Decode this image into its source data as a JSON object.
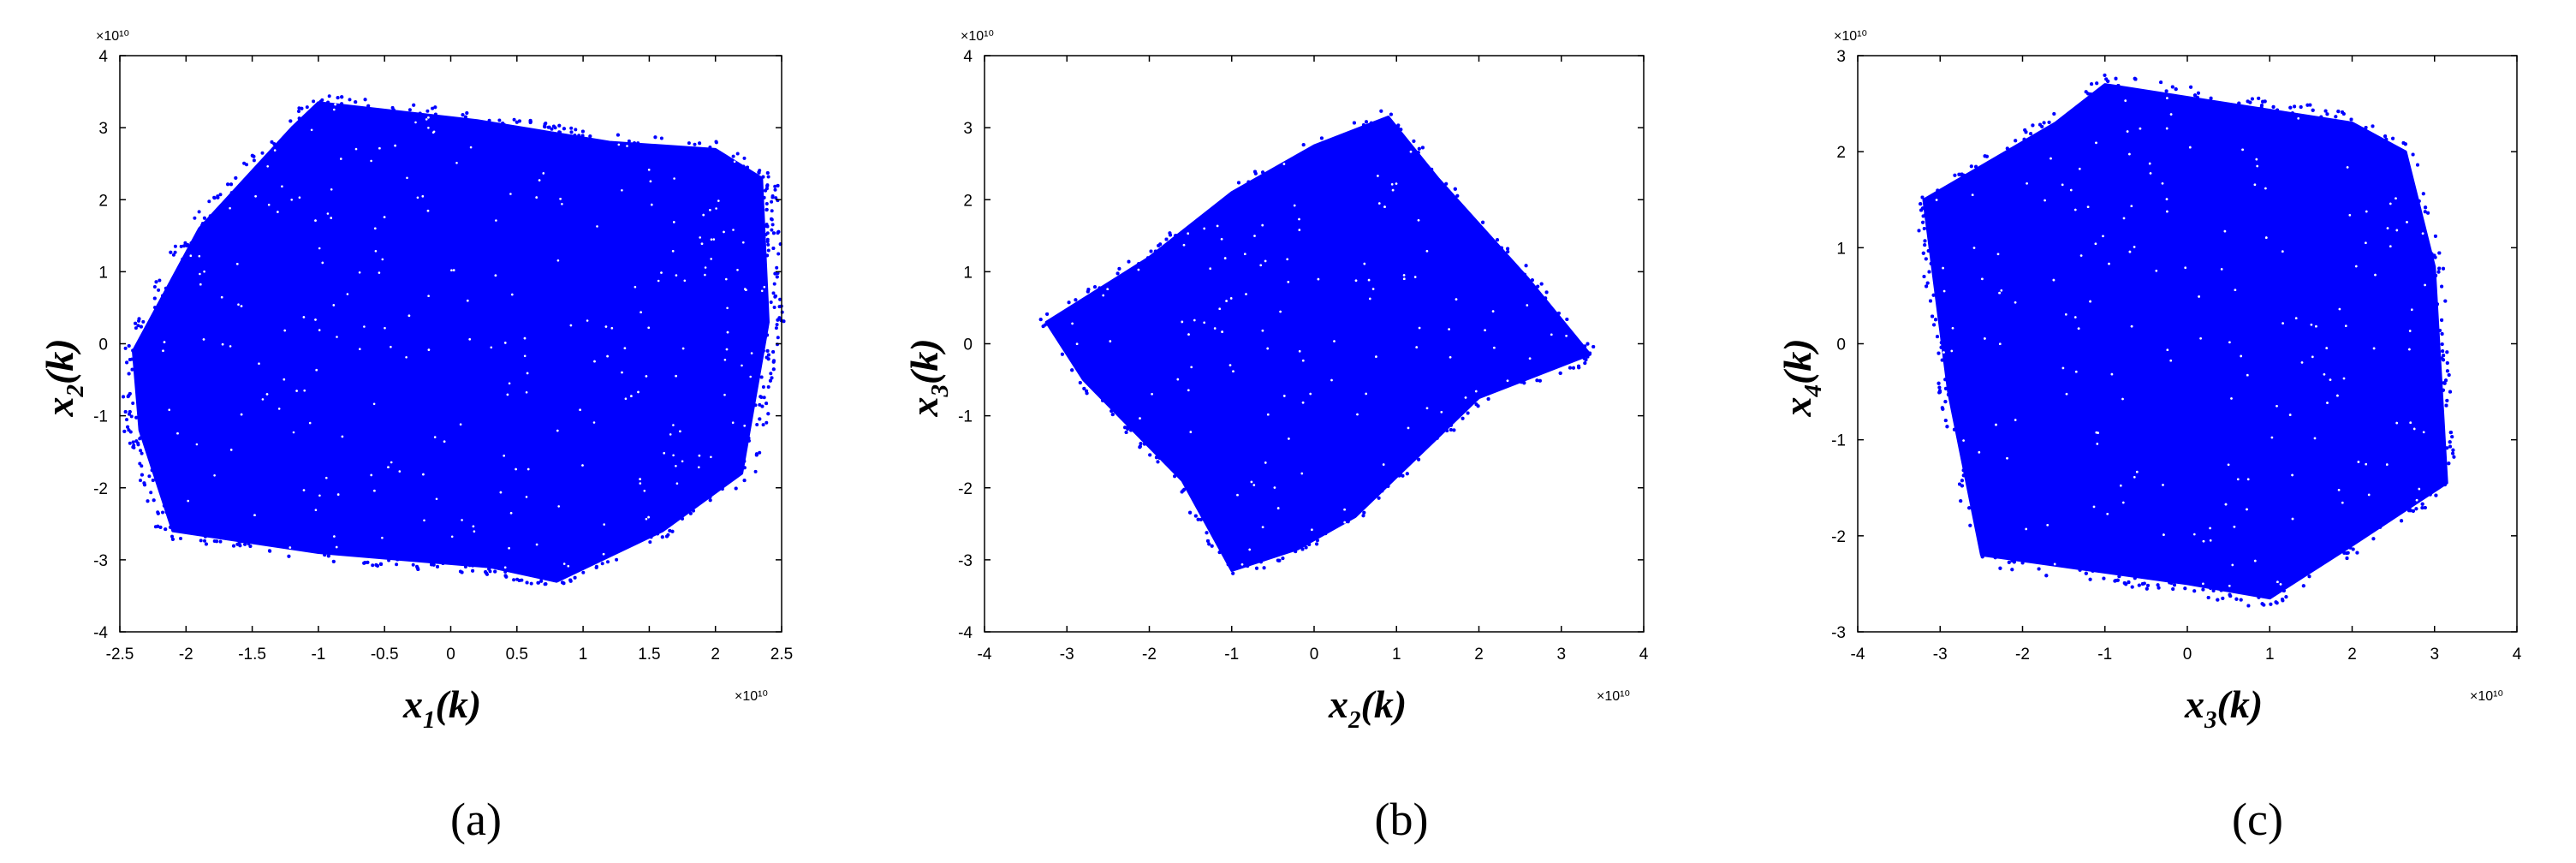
{
  "point_color": "#0000ff",
  "chart_data": [
    {
      "type": "scatter",
      "panel_label": "(a)",
      "exponent": "×10¹⁰",
      "x_exponent": "×10¹⁰",
      "xlabel": {
        "base": "x",
        "sub": "1",
        "suffix": "(k)"
      },
      "ylabel": {
        "base": "x",
        "sub": "2",
        "suffix": "(k)"
      },
      "xlim": [
        -2.5,
        2.5
      ],
      "ylim": [
        -4,
        4
      ],
      "xticks": [
        "-2.5",
        "-2",
        "-1.5",
        "-1",
        "-0.5",
        "0",
        "0.5",
        "1",
        "1.5",
        "2",
        "2.5"
      ],
      "yticks": [
        "-4",
        "-3",
        "-2",
        "-1",
        "0",
        "1",
        "2",
        "3",
        "4"
      ],
      "grid": false,
      "region_vertices": [
        [
          -2.4,
          -0.1
        ],
        [
          -1.9,
          1.6
        ],
        [
          -1.2,
          3.0
        ],
        [
          -1.0,
          3.35
        ],
        [
          0.2,
          3.1
        ],
        [
          1.2,
          2.8
        ],
        [
          2.0,
          2.7
        ],
        [
          2.35,
          2.3
        ],
        [
          2.4,
          0.3
        ],
        [
          2.2,
          -1.8
        ],
        [
          1.6,
          -2.6
        ],
        [
          0.8,
          -3.3
        ],
        [
          0.3,
          -3.1
        ],
        [
          -1.0,
          -2.9
        ],
        [
          -2.1,
          -2.6
        ],
        [
          -2.35,
          -1.2
        ]
      ]
    },
    {
      "type": "scatter",
      "panel_label": "(b)",
      "exponent": "×10¹⁰",
      "x_exponent": "×10¹⁰",
      "xlabel": {
        "base": "x",
        "sub": "2",
        "suffix": "(k)"
      },
      "ylabel": {
        "base": "x",
        "sub": "3",
        "suffix": "(k)"
      },
      "xlim": [
        -4,
        4
      ],
      "ylim": [
        -4,
        4
      ],
      "xticks": [
        "-4",
        "-3",
        "-2",
        "-1",
        "0",
        "1",
        "2",
        "3",
        "4"
      ],
      "yticks": [
        "-4",
        "-3",
        "-2",
        "-1",
        "0",
        "1",
        "2",
        "3",
        "4"
      ],
      "grid": false,
      "region_vertices": [
        [
          -3.25,
          0.3
        ],
        [
          -2.0,
          1.2
        ],
        [
          -1.0,
          2.1
        ],
        [
          0.0,
          2.75
        ],
        [
          0.9,
          3.15
        ],
        [
          1.5,
          2.3
        ],
        [
          2.6,
          0.9
        ],
        [
          3.35,
          -0.15
        ],
        [
          2.0,
          -0.75
        ],
        [
          0.5,
          -2.4
        ],
        [
          -0.2,
          -2.85
        ],
        [
          -1.0,
          -3.15
        ],
        [
          -1.6,
          -1.9
        ],
        [
          -2.8,
          -0.5
        ]
      ]
    },
    {
      "type": "scatter",
      "panel_label": "(c)",
      "exponent": "×10¹⁰",
      "x_exponent": "×10¹⁰",
      "xlabel": {
        "base": "x",
        "sub": "3",
        "suffix": "(k)"
      },
      "ylabel": {
        "base": "x",
        "sub": "4",
        "suffix": "(k)"
      },
      "xlim": [
        -4,
        4
      ],
      "ylim": [
        -3,
        3
      ],
      "xticks": [
        "-4",
        "-3",
        "-2",
        "-1",
        "0",
        "1",
        "2",
        "3",
        "4"
      ],
      "yticks": [
        "-3",
        "-2",
        "-1",
        "0",
        "1",
        "2",
        "3"
      ],
      "grid": false,
      "region_vertices": [
        [
          -3.2,
          1.5
        ],
        [
          -1.6,
          2.3
        ],
        [
          -1.0,
          2.7
        ],
        [
          0.5,
          2.5
        ],
        [
          2.0,
          2.3
        ],
        [
          2.65,
          2.0
        ],
        [
          3.0,
          0.8
        ],
        [
          3.15,
          -1.45
        ],
        [
          2.0,
          -2.1
        ],
        [
          1.0,
          -2.65
        ],
        [
          0.0,
          -2.5
        ],
        [
          -2.5,
          -2.2
        ],
        [
          -2.9,
          -0.5
        ]
      ]
    }
  ]
}
